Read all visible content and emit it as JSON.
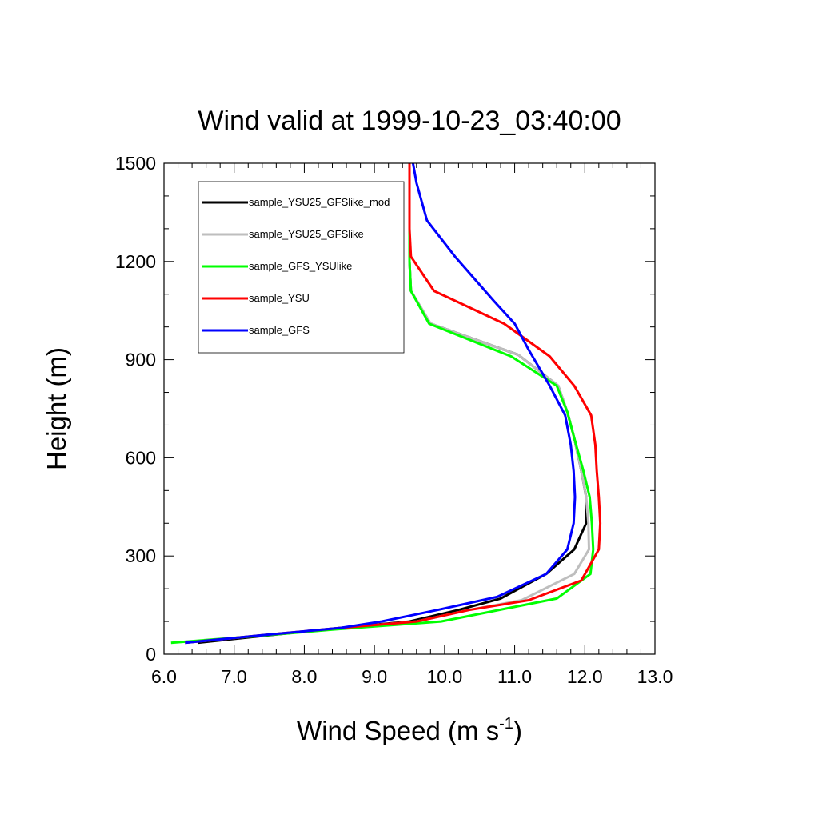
{
  "chart_data": {
    "type": "line",
    "title": "Wind valid at 1999-10-23_03:40:00",
    "xlabel": "Wind Speed (m s",
    "xlabel_exponent": "-1",
    "xlabel_close": ")",
    "ylabel": "Height (m)",
    "xlim": [
      6.0,
      13.0
    ],
    "ylim": [
      0,
      1500
    ],
    "x_ticks": [
      "6.0",
      "7.0",
      "8.0",
      "9.0",
      "10.0",
      "11.0",
      "12.0",
      "13.0"
    ],
    "y_ticks": [
      "0",
      "300",
      "600",
      "900",
      "1200",
      "1500"
    ],
    "grid": false,
    "legend_position": "top-left",
    "series": [
      {
        "name": "sample_YSU25_GFSlike_mod",
        "color": "#000000",
        "points": [
          [
            6.48,
            35
          ],
          [
            7.6,
            60
          ],
          [
            8.5,
            80
          ],
          [
            9.5,
            100
          ],
          [
            10.2,
            135
          ],
          [
            10.8,
            170
          ],
          [
            11.45,
            245
          ],
          [
            11.85,
            320
          ],
          [
            12.02,
            400
          ],
          [
            12.02,
            480
          ],
          [
            11.95,
            560
          ],
          [
            11.85,
            660
          ],
          [
            11.75,
            740
          ],
          [
            11.62,
            820
          ],
          [
            11.05,
            915
          ],
          [
            9.8,
            1010
          ],
          [
            9.52,
            1110
          ],
          [
            9.5,
            1200
          ],
          [
            9.5,
            1300
          ],
          [
            9.5,
            1400
          ],
          [
            9.5,
            1500
          ]
        ]
      },
      {
        "name": "sample_YSU25_GFSlike",
        "color": "#bebebe",
        "points": [
          [
            6.3,
            35
          ],
          [
            7.5,
            60
          ],
          [
            8.5,
            80
          ],
          [
            9.6,
            100
          ],
          [
            10.35,
            135
          ],
          [
            11.1,
            165
          ],
          [
            11.85,
            245
          ],
          [
            12.06,
            320
          ],
          [
            12.05,
            400
          ],
          [
            12.02,
            480
          ],
          [
            11.95,
            560
          ],
          [
            11.85,
            660
          ],
          [
            11.75,
            740
          ],
          [
            11.62,
            820
          ],
          [
            11.05,
            915
          ],
          [
            9.8,
            1010
          ],
          [
            9.52,
            1110
          ],
          [
            9.5,
            1200
          ],
          [
            9.5,
            1300
          ],
          [
            9.5,
            1400
          ],
          [
            9.5,
            1500
          ]
        ]
      },
      {
        "name": "sample_GFS_YSUlike",
        "color": "#00ff00",
        "points": [
          [
            6.1,
            35
          ],
          [
            7.3,
            55
          ],
          [
            8.4,
            75
          ],
          [
            9.95,
            100
          ],
          [
            11.6,
            170
          ],
          [
            12.08,
            245
          ],
          [
            12.12,
            320
          ],
          [
            12.1,
            400
          ],
          [
            12.07,
            480
          ],
          [
            11.98,
            560
          ],
          [
            11.85,
            660
          ],
          [
            11.75,
            740
          ],
          [
            11.6,
            820
          ],
          [
            10.95,
            910
          ],
          [
            9.78,
            1010
          ],
          [
            9.52,
            1110
          ],
          [
            9.5,
            1200
          ],
          [
            9.5,
            1300
          ],
          [
            9.5,
            1400
          ],
          [
            9.5,
            1500
          ]
        ]
      },
      {
        "name": "sample_YSU",
        "color": "#ff0000",
        "points": [
          [
            6.3,
            35
          ],
          [
            7.5,
            60
          ],
          [
            8.5,
            80
          ],
          [
            9.6,
            100
          ],
          [
            10.35,
            135
          ],
          [
            11.2,
            165
          ],
          [
            11.95,
            225
          ],
          [
            12.2,
            320
          ],
          [
            12.22,
            400
          ],
          [
            12.2,
            480
          ],
          [
            12.17,
            560
          ],
          [
            12.15,
            640
          ],
          [
            12.09,
            730
          ],
          [
            11.85,
            820
          ],
          [
            11.5,
            910
          ],
          [
            10.85,
            1010
          ],
          [
            9.85,
            1110
          ],
          [
            9.52,
            1215
          ],
          [
            9.5,
            1300
          ],
          [
            9.5,
            1400
          ],
          [
            9.5,
            1500
          ]
        ]
      },
      {
        "name": "sample_GFS",
        "color": "#0000ff",
        "points": [
          [
            6.3,
            35
          ],
          [
            7.5,
            60
          ],
          [
            8.5,
            80
          ],
          [
            9.1,
            100
          ],
          [
            9.9,
            135
          ],
          [
            10.75,
            175
          ],
          [
            11.45,
            245
          ],
          [
            11.75,
            320
          ],
          [
            11.84,
            400
          ],
          [
            11.86,
            480
          ],
          [
            11.84,
            560
          ],
          [
            11.8,
            640
          ],
          [
            11.72,
            730
          ],
          [
            11.5,
            820
          ],
          [
            11.2,
            930
          ],
          [
            11.0,
            1010
          ],
          [
            10.7,
            1080
          ],
          [
            10.15,
            1215
          ],
          [
            9.75,
            1325
          ],
          [
            9.6,
            1440
          ],
          [
            9.55,
            1500
          ]
        ]
      }
    ]
  }
}
